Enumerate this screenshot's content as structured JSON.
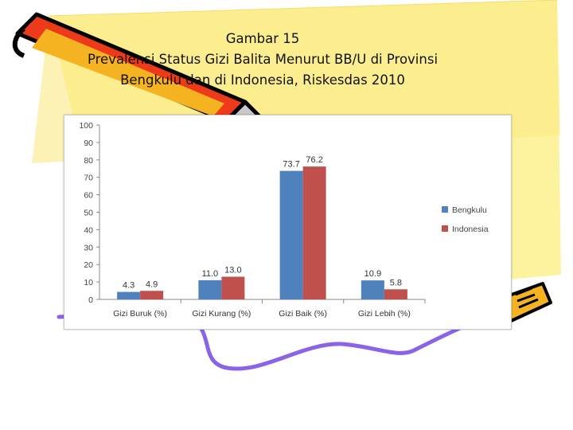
{
  "slide": {
    "title_lines": [
      "Gambar 15",
      "Prevalensi Status Gizi Balita Menurut BB/U di Provinsi",
      "Bengkulu dan di Indonesia, Riskesdas 2010"
    ]
  },
  "decorations": {
    "pencil_top_left": "pencil-icon",
    "pencil_right": "pencil-icon",
    "scribble": "purple-squiggle",
    "background": "yellow-sticky-note"
  },
  "chart_data": {
    "type": "bar",
    "categories": [
      "Gizi Buruk (%)",
      "Gizi Kurang (%)",
      "Gizi Baik (%)",
      "Gizi Lebih (%)"
    ],
    "series": [
      {
        "name": "Bengkulu",
        "values": [
          4.3,
          11.0,
          73.7,
          10.9
        ],
        "labels": [
          "4.3",
          "11.0",
          "73.7",
          "10.9"
        ],
        "color": "#4f81bd"
      },
      {
        "name": "Indonesia",
        "values": [
          4.9,
          13.0,
          76.2,
          5.8
        ],
        "labels": [
          "4.9",
          "13.0",
          "76.2",
          "5.8"
        ],
        "color": "#c0504d"
      }
    ],
    "y_ticks": [
      "0",
      "10",
      "20",
      "30",
      "40",
      "50",
      "60",
      "70",
      "80",
      "90",
      "100"
    ],
    "ylim": [
      0,
      100
    ],
    "grid": false,
    "legend_position": "right"
  }
}
